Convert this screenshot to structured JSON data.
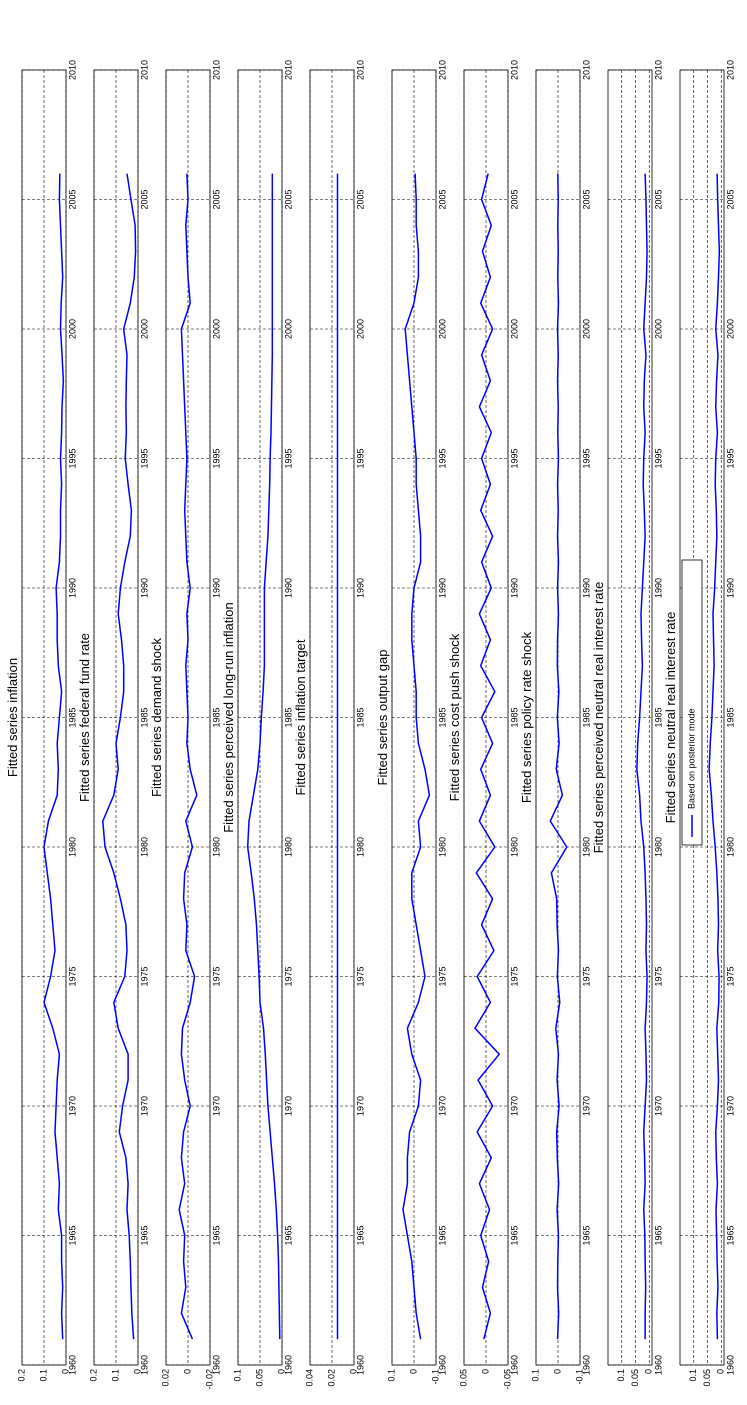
{
  "chart_data": [
    {
      "type": "line",
      "title": "Fitted series inflation",
      "color": "#0000ff",
      "xlim": [
        1960,
        2010
      ],
      "xticks": [
        1960,
        1965,
        1970,
        1975,
        1980,
        1985,
        1990,
        1995,
        2000,
        2005,
        2010
      ],
      "ylim": [
        0,
        0.2
      ],
      "yticks": [
        0,
        0.1,
        0.2
      ],
      "grid": true,
      "x": [
        1961,
        1962,
        1963,
        1964,
        1965,
        1966,
        1967,
        1968,
        1969,
        1970,
        1971,
        1972,
        1973,
        1974,
        1975,
        1976,
        1977,
        1978,
        1979,
        1980,
        1981,
        1982,
        1983,
        1984,
        1985,
        1986,
        1987,
        1988,
        1989,
        1990,
        1991,
        1992,
        1993,
        1994,
        1995,
        1996,
        1997,
        1998,
        1999,
        2000,
        2001,
        2002,
        2003,
        2004,
        2005,
        2006
      ],
      "values": [
        0.015,
        0.02,
        0.015,
        0.02,
        0.02,
        0.035,
        0.03,
        0.04,
        0.05,
        0.045,
        0.04,
        0.03,
        0.06,
        0.1,
        0.07,
        0.05,
        0.06,
        0.07,
        0.085,
        0.1,
        0.08,
        0.04,
        0.035,
        0.04,
        0.03,
        0.02,
        0.035,
        0.04,
        0.04,
        0.045,
        0.03,
        0.025,
        0.025,
        0.02,
        0.025,
        0.02,
        0.018,
        0.012,
        0.018,
        0.025,
        0.022,
        0.015,
        0.02,
        0.025,
        0.03,
        0.028
      ]
    },
    {
      "type": "line",
      "title": "Fitted series federal fund rate",
      "color": "#0000ff",
      "xlim": [
        1960,
        2010
      ],
      "xticks": [
        1960,
        1965,
        1970,
        1975,
        1980,
        1985,
        1990,
        1995,
        2000,
        2005,
        2010
      ],
      "ylim": [
        0,
        0.2
      ],
      "yticks": [
        0,
        0.1,
        0.2
      ],
      "grid": true,
      "x": [
        1961,
        1962,
        1963,
        1964,
        1965,
        1966,
        1967,
        1968,
        1969,
        1970,
        1971,
        1972,
        1973,
        1974,
        1975,
        1976,
        1977,
        1978,
        1979,
        1980,
        1981,
        1982,
        1983,
        1984,
        1985,
        1986,
        1987,
        1988,
        1989,
        1990,
        1991,
        1992,
        1993,
        1994,
        1995,
        1996,
        1997,
        1998,
        1999,
        2000,
        2001,
        2002,
        2003,
        2004,
        2005,
        2006
      ],
      "values": [
        0.02,
        0.028,
        0.032,
        0.035,
        0.04,
        0.05,
        0.045,
        0.055,
        0.085,
        0.07,
        0.045,
        0.045,
        0.09,
        0.11,
        0.06,
        0.05,
        0.055,
        0.08,
        0.11,
        0.15,
        0.16,
        0.11,
        0.09,
        0.1,
        0.08,
        0.065,
        0.065,
        0.075,
        0.09,
        0.08,
        0.06,
        0.035,
        0.03,
        0.045,
        0.058,
        0.053,
        0.055,
        0.053,
        0.05,
        0.065,
        0.035,
        0.017,
        0.011,
        0.013,
        0.032,
        0.05
      ]
    },
    {
      "type": "line",
      "title": "Fitted series demand shock",
      "color": "#0000ff",
      "xlim": [
        1960,
        2010
      ],
      "xticks": [
        1960,
        1965,
        1970,
        1975,
        1980,
        1985,
        1990,
        1995,
        2000,
        2005,
        2010
      ],
      "ylim": [
        -0.02,
        0.02
      ],
      "yticks": [
        -0.02,
        0,
        0.02
      ],
      "grid": true,
      "x": [
        1961,
        1962,
        1963,
        1964,
        1965,
        1966,
        1967,
        1968,
        1969,
        1970,
        1971,
        1972,
        1973,
        1974,
        1975,
        1976,
        1977,
        1978,
        1979,
        1980,
        1981,
        1982,
        1983,
        1984,
        1985,
        1986,
        1987,
        1988,
        1989,
        1990,
        1991,
        1992,
        1993,
        1994,
        1995,
        1996,
        1997,
        1998,
        1999,
        2000,
        2001,
        2002,
        2003,
        2004,
        2005,
        2006
      ],
      "values": [
        -0.004,
        0.006,
        0.002,
        0.004,
        0.003,
        0.008,
        0.003,
        0.006,
        0.004,
        -0.002,
        0.003,
        0.006,
        0.005,
        -0.002,
        -0.006,
        0.002,
        0.001,
        0.004,
        0.003,
        -0.004,
        0.002,
        -0.008,
        -0.002,
        0.001,
        0,
        0.001,
        0.002,
        0,
        0.001,
        -0.002,
        0.001,
        0.002,
        0.003,
        0.002,
        0.001,
        0.002,
        0.003,
        0.004,
        0.005,
        0.006,
        -0.002,
        0,
        0.001,
        0.002,
        0,
        0.001
      ]
    },
    {
      "type": "line",
      "title": "Fitted series perceived long-run inflation",
      "color": "#0000ff",
      "xlim": [
        1960,
        2010
      ],
      "xticks": [
        1960,
        1965,
        1970,
        1975,
        1980,
        1985,
        1990,
        1995,
        2000,
        2005,
        2010
      ],
      "ylim": [
        0,
        0.1
      ],
      "yticks": [
        0,
        0.05,
        0.1
      ],
      "grid": true,
      "x": [
        1961,
        1962,
        1963,
        1964,
        1965,
        1966,
        1967,
        1968,
        1969,
        1970,
        1971,
        1972,
        1973,
        1974,
        1975,
        1976,
        1977,
        1978,
        1979,
        1980,
        1981,
        1982,
        1983,
        1984,
        1985,
        1986,
        1987,
        1988,
        1989,
        1990,
        1991,
        1992,
        1993,
        1994,
        1995,
        1996,
        1997,
        1998,
        1999,
        2000,
        2001,
        2002,
        2003,
        2004,
        2005,
        2006
      ],
      "values": [
        0.005,
        0.006,
        0.007,
        0.008,
        0.01,
        0.013,
        0.017,
        0.022,
        0.027,
        0.032,
        0.035,
        0.038,
        0.042,
        0.05,
        0.052,
        0.055,
        0.058,
        0.063,
        0.07,
        0.078,
        0.075,
        0.065,
        0.055,
        0.05,
        0.047,
        0.043,
        0.04,
        0.04,
        0.04,
        0.04,
        0.036,
        0.032,
        0.03,
        0.028,
        0.027,
        0.025,
        0.024,
        0.023,
        0.022,
        0.022,
        0.022,
        0.022,
        0.022,
        0.022,
        0.022,
        0.022
      ]
    },
    {
      "type": "line",
      "title": "Fitted series inflation target",
      "color": "#0000ff",
      "xlim": [
        1960,
        2010
      ],
      "xticks": [
        1960,
        1965,
        1970,
        1975,
        1980,
        1985,
        1990,
        1995,
        2000,
        2005,
        2010
      ],
      "ylim": [
        0,
        0.04
      ],
      "yticks": [
        0,
        0.02,
        0.04
      ],
      "grid": true,
      "x": [
        1961,
        1962,
        1963,
        1964,
        1965,
        1966,
        1967,
        1968,
        1969,
        1970,
        1971,
        1972,
        1973,
        1974,
        1975,
        1976,
        1977,
        1978,
        1979,
        1980,
        1981,
        1982,
        1983,
        1984,
        1985,
        1986,
        1987,
        1988,
        1989,
        1990,
        1991,
        1992,
        1993,
        1994,
        1995,
        1996,
        1997,
        1998,
        1999,
        2000,
        2001,
        2002,
        2003,
        2004,
        2005,
        2006
      ],
      "values": [
        0.015,
        0.015,
        0.015,
        0.015,
        0.015,
        0.015,
        0.015,
        0.015,
        0.015,
        0.015,
        0.015,
        0.015,
        0.015,
        0.015,
        0.015,
        0.015,
        0.015,
        0.015,
        0.015,
        0.015,
        0.015,
        0.015,
        0.015,
        0.015,
        0.015,
        0.015,
        0.015,
        0.015,
        0.015,
        0.015,
        0.015,
        0.015,
        0.015,
        0.015,
        0.015,
        0.015,
        0.015,
        0.015,
        0.015,
        0.015,
        0.015,
        0.015,
        0.015,
        0.015,
        0.015,
        0.015
      ]
    },
    {
      "type": "line",
      "title": "Fitted series output gap",
      "color": "#0000ff",
      "xlim": [
        1960,
        2010
      ],
      "xticks": [
        1960,
        1965,
        1970,
        1975,
        1980,
        1985,
        1990,
        1995,
        2000,
        2005,
        2010
      ],
      "ylim": [
        -0.1,
        0.1
      ],
      "yticks": [
        -0.1,
        0,
        0.1
      ],
      "grid": true,
      "x": [
        1961,
        1962,
        1963,
        1964,
        1965,
        1966,
        1967,
        1968,
        1969,
        1970,
        1971,
        1972,
        1973,
        1974,
        1975,
        1976,
        1977,
        1978,
        1979,
        1980,
        1981,
        1982,
        1983,
        1984,
        1985,
        1986,
        1987,
        1988,
        1989,
        1990,
        1991,
        1992,
        1993,
        1994,
        1995,
        1996,
        1997,
        1998,
        1999,
        2000,
        2001,
        2002,
        2003,
        2004,
        2005,
        2006
      ],
      "values": [
        -0.03,
        -0.01,
        0,
        0.01,
        0.03,
        0.05,
        0.03,
        0.03,
        0.02,
        -0.02,
        -0.03,
        0.01,
        0.03,
        -0.02,
        -0.05,
        -0.03,
        -0.01,
        0.01,
        0.01,
        -0.03,
        -0.02,
        -0.07,
        -0.05,
        -0.02,
        -0.01,
        -0.01,
        0,
        0.01,
        0.01,
        0,
        -0.03,
        -0.03,
        -0.02,
        -0.01,
        -0.01,
        0,
        0.01,
        0.02,
        0.03,
        0.04,
        0,
        -0.02,
        -0.02,
        -0.01,
        -0.01,
        -0.005
      ]
    },
    {
      "type": "line",
      "title": "Fitted series cost push shock",
      "color": "#0000ff",
      "xlim": [
        1960,
        2010
      ],
      "xticks": [
        1960,
        1965,
        1970,
        1975,
        1980,
        1985,
        1990,
        1995,
        2000,
        2005,
        2010
      ],
      "ylim": [
        -0.05,
        0.05
      ],
      "yticks": [
        -0.05,
        0,
        0.05
      ],
      "grid": true,
      "x": [
        1961,
        1962,
        1963,
        1964,
        1965,
        1966,
        1967,
        1968,
        1969,
        1970,
        1971,
        1972,
        1973,
        1974,
        1975,
        1976,
        1977,
        1978,
        1979,
        1980,
        1981,
        1982,
        1983,
        1984,
        1985,
        1986,
        1987,
        1988,
        1989,
        1990,
        1991,
        1992,
        1993,
        1994,
        1995,
        1996,
        1997,
        1998,
        1999,
        2000,
        2001,
        2002,
        2003,
        2004,
        2005,
        2006
      ],
      "values": [
        0.005,
        -0.01,
        0.008,
        -0.006,
        0.012,
        -0.008,
        0.015,
        -0.012,
        0.02,
        -0.015,
        0.018,
        -0.03,
        0.025,
        -0.01,
        0.02,
        -0.018,
        0.01,
        -0.015,
        0.022,
        -0.02,
        0.015,
        -0.01,
        0.012,
        -0.015,
        0.01,
        -0.02,
        0.012,
        -0.01,
        0.015,
        -0.012,
        0.01,
        -0.015,
        0.012,
        -0.01,
        0.01,
        -0.012,
        0.015,
        -0.01,
        0.01,
        -0.015,
        0.012,
        -0.01,
        0.008,
        -0.012,
        0.01,
        -0.005
      ]
    },
    {
      "type": "line",
      "title": "Fitted series policy rate shock",
      "color": "#0000ff",
      "xlim": [
        1960,
        2010
      ],
      "xticks": [
        1960,
        1965,
        1970,
        1975,
        1980,
        1985,
        1990,
        1995,
        2000,
        2005,
        2010
      ],
      "ylim": [
        -0.1,
        0.1
      ],
      "yticks": [
        -0.1,
        0,
        0.1
      ],
      "grid": true,
      "x": [
        1961,
        1962,
        1963,
        1964,
        1965,
        1966,
        1967,
        1968,
        1969,
        1970,
        1971,
        1972,
        1973,
        1974,
        1975,
        1976,
        1977,
        1978,
        1979,
        1980,
        1981,
        1982,
        1983,
        1984,
        1985,
        1986,
        1987,
        1988,
        1989,
        1990,
        1991,
        1992,
        1993,
        1994,
        1995,
        1996,
        1997,
        1998,
        1999,
        2000,
        2001,
        2002,
        2003,
        2004,
        2005,
        2006
      ],
      "values": [
        0.002,
        -0.003,
        0.002,
        0.001,
        -0.002,
        0.004,
        -0.003,
        0.003,
        0.006,
        -0.005,
        0.004,
        -0.002,
        0.01,
        -0.008,
        0.003,
        -0.002,
        0.004,
        0.006,
        0.03,
        -0.04,
        0.035,
        -0.02,
        0.008,
        -0.005,
        0.003,
        -0.004,
        0.003,
        0.002,
        -0.002,
        0.002,
        -0.002,
        0.002,
        -0.001,
        0.002,
        -0.002,
        0.001,
        -0.001,
        0.002,
        -0.001,
        0.002,
        -0.002,
        0.001,
        -0.001,
        0.001,
        -0.001,
        0.001
      ]
    },
    {
      "type": "line",
      "title": "Fitted series perceived neutral real interest rate",
      "color": "#0000ff",
      "xlim": [
        1960,
        2010
      ],
      "xticks": [
        1960,
        1965,
        1970,
        1975,
        1980,
        1985,
        1990,
        1995,
        2000,
        2005,
        2010
      ],
      "ylim": [
        -0.01,
        0.15
      ],
      "yticks": [
        0,
        0.05,
        0.1
      ],
      "grid": true,
      "x": [
        1961,
        1962,
        1963,
        1964,
        1965,
        1966,
        1967,
        1968,
        1969,
        1970,
        1971,
        1972,
        1973,
        1974,
        1975,
        1976,
        1977,
        1978,
        1979,
        1980,
        1981,
        1982,
        1983,
        1984,
        1985,
        1986,
        1987,
        1988,
        1989,
        1990,
        1991,
        1992,
        1993,
        1994,
        1995,
        1996,
        1997,
        1998,
        1999,
        2000,
        2001,
        2002,
        2003,
        2004,
        2005,
        2006
      ],
      "values": [
        0.015,
        0.015,
        0.013,
        0.015,
        0.016,
        0.02,
        0.015,
        0.017,
        0.02,
        0.015,
        0.01,
        0.012,
        0.015,
        0.01,
        0.008,
        0.012,
        0.01,
        0.012,
        0.015,
        0.02,
        0.03,
        0.035,
        0.045,
        0.042,
        0.035,
        0.03,
        0.025,
        0.028,
        0.03,
        0.025,
        0.02,
        0.015,
        0.018,
        0.022,
        0.02,
        0.015,
        0.02,
        0.018,
        0.012,
        0.02,
        0.015,
        0.01,
        0.008,
        0.01,
        0.012,
        0.015
      ]
    },
    {
      "type": "line",
      "title": "Fitted series neutral real interest rate",
      "xlim": [
        1960,
        2010
      ],
      "xticks": [
        1960,
        1965,
        1970,
        1975,
        1980,
        1985,
        1990,
        1995,
        2000,
        2005,
        2010
      ],
      "ylim": [
        -0.01,
        0.15
      ],
      "yticks": [
        0,
        0.05,
        0.1
      ],
      "grid": true,
      "x": [
        1961,
        1962,
        1963,
        1964,
        1965,
        1966,
        1967,
        1968,
        1969,
        1970,
        1971,
        1972,
        1973,
        1974,
        1975,
        1976,
        1977,
        1978,
        1979,
        1980,
        1981,
        1982,
        1983,
        1984,
        1985,
        1986,
        1987,
        1988,
        1989,
        1990,
        1991,
        1992,
        1993,
        1994,
        1995,
        1996,
        1997,
        1998,
        1999,
        2000,
        2001,
        2002,
        2003,
        2004,
        2005,
        2006
      ],
      "series": [
        {
          "name": "Based on posterior mode",
          "color": "#0000ff",
          "values": [
            0.014,
            0.016,
            0.012,
            0.015,
            0.017,
            0.019,
            0.014,
            0.018,
            0.02,
            0.014,
            0.01,
            0.013,
            0.016,
            0.009,
            0.008,
            0.013,
            0.01,
            0.012,
            0.016,
            0.022,
            0.03,
            0.036,
            0.044,
            0.04,
            0.034,
            0.03,
            0.026,
            0.028,
            0.03,
            0.024,
            0.02,
            0.016,
            0.018,
            0.022,
            0.02,
            0.014,
            0.02,
            0.017,
            0.012,
            0.02,
            0.014,
            0.01,
            0.007,
            0.01,
            0.013,
            0.015
          ]
        }
      ]
    }
  ]
}
